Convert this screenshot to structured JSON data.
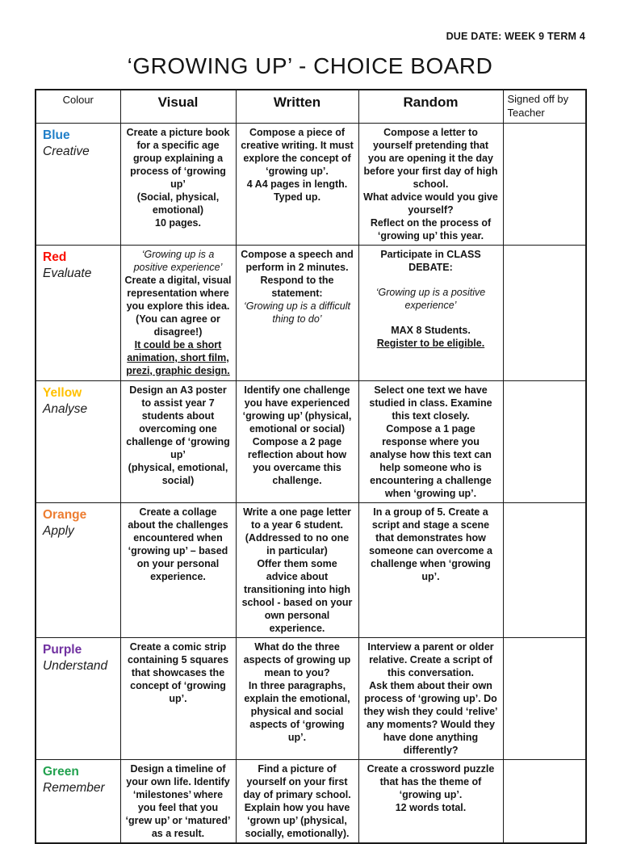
{
  "header": {
    "due_date": "DUE DATE: WEEK 9 TERM 4",
    "title": "‘GROWING UP’ - CHOICE BOARD"
  },
  "table": {
    "columns": [
      "Colour",
      "Visual",
      "Written",
      "Random",
      "Signed off by Teacher"
    ],
    "rows": [
      {
        "colour": {
          "name": "Blue",
          "hex": "#1F7EC8",
          "skill": "Creative"
        },
        "visual": [
          {
            "text": "Create a picture book for a specific age group explaining a process of ‘growing up’"
          },
          {
            "text": "(Social, physical, emotional)"
          },
          {
            "text": "10 pages."
          }
        ],
        "written": [
          {
            "text": "Compose a piece of creative writing. It must explore the concept of ‘growing up’."
          },
          {
            "text": "4 A4 pages in length. Typed up."
          }
        ],
        "random": [
          {
            "text": "Compose a letter to yourself pretending that you are opening it the day before your first day of high school."
          },
          {
            "text": "What advice would you give yourself?"
          },
          {
            "text": "Reflect on the process of ‘growing up’ this year."
          }
        ],
        "signed": ""
      },
      {
        "colour": {
          "name": "Red",
          "hex": "#FA0D00",
          "skill": "Evaluate"
        },
        "visual": [
          {
            "text": "‘Growing up is a positive experience’",
            "italic": true
          },
          {
            "text": "Create a digital, visual representation where you explore this idea. (You can agree or disagree!)"
          },
          {
            "text": "It could be a short animation, short film, prezi, graphic design.",
            "underline": true
          }
        ],
        "written": [
          {
            "text": "Compose a speech and perform in 2 minutes."
          },
          {
            "text": "Respond to the statement:"
          },
          {
            "text": "‘Growing up is a difficult thing to do’",
            "italic": true
          }
        ],
        "random": [
          {
            "text": "Participate in CLASS DEBATE:"
          },
          {
            "text": "",
            "blank": true
          },
          {
            "text": "‘Growing up is a positive experience’",
            "italic": true
          },
          {
            "text": "",
            "blank": true
          },
          {
            "text": "MAX 8 Students."
          },
          {
            "text": "Register to be eligible.",
            "underline": true
          }
        ],
        "signed": ""
      },
      {
        "colour": {
          "name": "Yellow",
          "hex": "#FFC000",
          "skill": "Analyse"
        },
        "visual": [
          {
            "text": "Design an A3 poster to assist year 7 students about overcoming one challenge of ‘growing up’"
          },
          {
            "text": "(physical, emotional, social)"
          }
        ],
        "written": [
          {
            "text": "Identify one challenge you have experienced ‘growing up’ (physical, emotional or social)"
          },
          {
            "text": "Compose a 2 page reflection about how you overcame this challenge."
          }
        ],
        "random": [
          {
            "text": "Select one text we have studied in class. Examine this text closely."
          },
          {
            "text": "Compose a 1 page response where you analyse how this text can help someone who is encountering a challenge when ‘growing up’."
          }
        ],
        "signed": ""
      },
      {
        "colour": {
          "name": "Orange",
          "hex": "#ED7D31",
          "skill": "Apply"
        },
        "visual": [
          {
            "text": "Create a collage about the challenges encountered when ‘growing up’ – based on your personal experience."
          }
        ],
        "written": [
          {
            "text": "Write a one page letter to a year 6 student. (Addressed to no one in particular)"
          },
          {
            "text": "Offer them some advice about transitioning into high school - based on your own personal experience."
          }
        ],
        "random": [
          {
            "text": "In a group of 5. Create a script and stage a scene that demonstrates how someone can overcome a challenge when ‘growing up’."
          }
        ],
        "signed": ""
      },
      {
        "colour": {
          "name": "Purple",
          "hex": "#7030A0",
          "skill": "Understand"
        },
        "visual": [
          {
            "text": "Create a comic strip containing 5 squares that showcases the concept of ‘growing up’."
          }
        ],
        "written": [
          {
            "text": "What do the three aspects of growing up mean to you?"
          },
          {
            "text": "In three paragraphs, explain the emotional, physical and social aspects of ‘growing up’."
          }
        ],
        "random": [
          {
            "text": "Interview a parent or older relative. Create a script of this conversation."
          },
          {
            "text": "Ask them about their own process of ‘growing up’. Do they wish they could ‘relive’ any moments? Would they have done anything differently?"
          }
        ],
        "signed": ""
      },
      {
        "colour": {
          "name": "Green",
          "hex": "#21A14E",
          "skill": "Remember"
        },
        "visual": [
          {
            "text": "Design a timeline of your own life. Identify ‘milestones’ where you feel that you ‘grew up’ or ‘matured’ as a result."
          }
        ],
        "written": [
          {
            "text": "Find a picture of yourself on your first day of primary school. Explain how you have ‘grown up’ (physical, socially, emotionally)."
          }
        ],
        "random": [
          {
            "text": "Create a crossword puzzle that has the theme of ‘growing up’."
          },
          {
            "text": "12 words total."
          }
        ],
        "signed": ""
      }
    ]
  }
}
